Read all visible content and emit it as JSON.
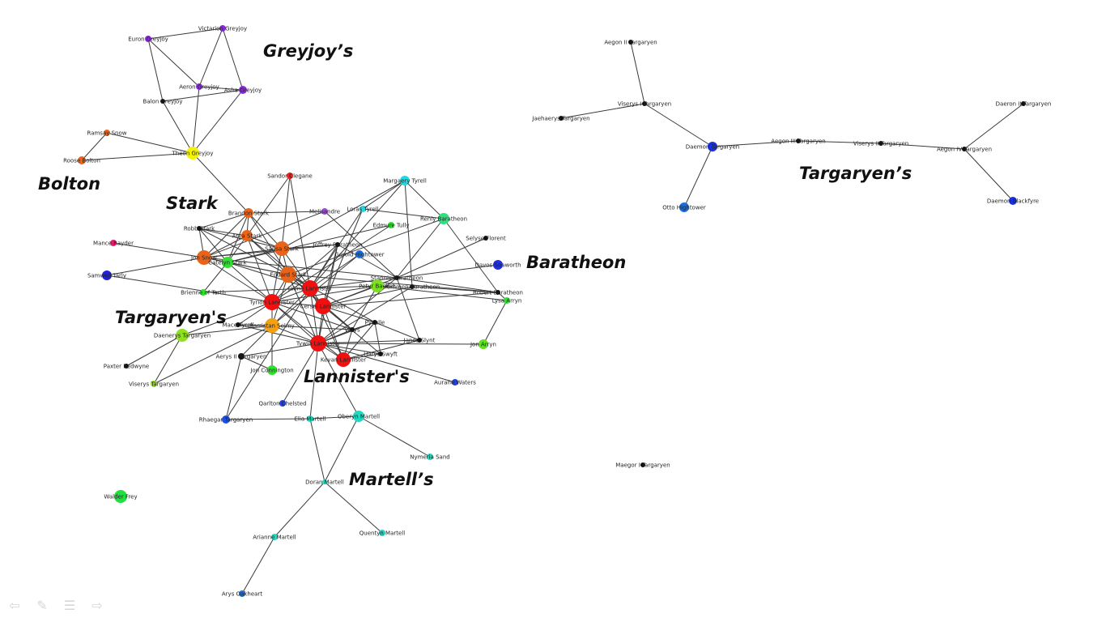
{
  "house_labels": [
    {
      "id": "greyjoys",
      "text": "Greyjoy’s"
    },
    {
      "id": "bolton",
      "text": "Bolton"
    },
    {
      "id": "stark",
      "text": "Stark"
    },
    {
      "id": "baratheon",
      "text": "Baratheon"
    },
    {
      "id": "targaryens-left",
      "text": "Targaryen's"
    },
    {
      "id": "lannisters",
      "text": "Lannister's"
    },
    {
      "id": "martells",
      "text": "Martell’s"
    },
    {
      "id": "targaryens-right",
      "text": "Targaryen’s"
    }
  ],
  "nodes": [
    {
      "id": "euron",
      "label": "Euron Greyjoy",
      "color": "#8a2be2"
    },
    {
      "id": "victarion",
      "label": "Victarion Greyjoy",
      "color": "#8a2be2"
    },
    {
      "id": "aeron",
      "label": "Aeron Greyjoy",
      "color": "#8a2be2"
    },
    {
      "id": "asha",
      "label": "Asha Greyjoy",
      "color": "#8a2be2"
    },
    {
      "id": "balon",
      "label": "Balon Greyjoy",
      "color": "#111111"
    },
    {
      "id": "theon",
      "label": "Theon Greyjoy",
      "color": "#f2f20a"
    },
    {
      "id": "ramsay",
      "label": "Ramsay Snow",
      "color": "#e8641a"
    },
    {
      "id": "roose",
      "label": "Roose Bolton",
      "color": "#e8641a"
    },
    {
      "id": "sandor",
      "label": "Sandor Clegane",
      "color": "#e8201a"
    },
    {
      "id": "margaery",
      "label": "Margaery Tyrell",
      "color": "#20d8e0"
    },
    {
      "id": "brandon",
      "label": "Brandon Stark",
      "color": "#e8641a"
    },
    {
      "id": "melisandre",
      "label": "Melisandre",
      "color": "#a050e0"
    },
    {
      "id": "loras",
      "label": "Loras Tyrell",
      "color": "#20d8e0"
    },
    {
      "id": "edmure",
      "label": "Edmure Tully",
      "color": "#30e030"
    },
    {
      "id": "renly",
      "label": "Renly Baratheon",
      "color": "#30e080"
    },
    {
      "id": "robb",
      "label": "Robb Stark",
      "color": "#111111"
    },
    {
      "id": "arya",
      "label": "Arya Stark",
      "color": "#e8641a"
    },
    {
      "id": "mance",
      "label": "Mance Rayder",
      "color": "#e81a6a"
    },
    {
      "id": "sansa",
      "label": "Sansa Stark",
      "color": "#e8641a"
    },
    {
      "id": "joffrey",
      "label": "Joffrey Baratheon",
      "color": "#111111"
    },
    {
      "id": "selyse",
      "label": "Selyse Florent",
      "color": "#111111"
    },
    {
      "id": "jon_snow",
      "label": "Jon Snow",
      "color": "#e8641a"
    },
    {
      "id": "catelyn",
      "label": "Catelyn Stark",
      "color": "#30e030"
    },
    {
      "id": "gerold",
      "label": "Gerold Hightower",
      "color": "#1a70e0"
    },
    {
      "id": "davos",
      "label": "Davos Seaworth",
      "color": "#2030e0"
    },
    {
      "id": "samwell",
      "label": "Samwell Tarly",
      "color": "#2020e0"
    },
    {
      "id": "eddard",
      "label": "Eddard Stark",
      "color": "#e8641a"
    },
    {
      "id": "stannis",
      "label": "Stannis Baratheon",
      "color": "#111111"
    },
    {
      "id": "jaime",
      "label": "Jaime Lannister",
      "color": "#f01010"
    },
    {
      "id": "petyr",
      "label": "Petyr Baelish",
      "color": "#7ae020"
    },
    {
      "id": "tommen",
      "label": "Tommen Baratheon",
      "color": "#111111"
    },
    {
      "id": "brienne",
      "label": "Brienne of Tarth",
      "color": "#30e030"
    },
    {
      "id": "robert",
      "label": "Robert Baratheon",
      "color": "#111111"
    },
    {
      "id": "lysa",
      "label": "Lysa Arryn",
      "color": "#30e030"
    },
    {
      "id": "tyrion",
      "label": "Tyrion Lannister",
      "color": "#f01010"
    },
    {
      "id": "cersei",
      "label": "Cersei Lannister",
      "color": "#f01010"
    },
    {
      "id": "daenerys",
      "label": "Daenerys Targaryen",
      "color": "#90e020"
    },
    {
      "id": "mace",
      "label": "Mace Tyrell",
      "color": "#111111"
    },
    {
      "id": "barristan",
      "label": "Barristan Selmy",
      "color": "#f5a010"
    },
    {
      "id": "pycelle",
      "label": "Pycelle",
      "color": "#111111"
    },
    {
      "id": "varys",
      "label": "Varys",
      "color": "#111111"
    },
    {
      "id": "tywin",
      "label": "Tywin Lannister",
      "color": "#f01010"
    },
    {
      "id": "janos",
      "label": "Janos Slynt",
      "color": "#111111"
    },
    {
      "id": "jon_arryn",
      "label": "Jon Arryn",
      "color": "#60e020"
    },
    {
      "id": "aerys",
      "label": "Aerys II Targaryen",
      "color": "#111111"
    },
    {
      "id": "harys",
      "label": "Harys Swyft",
      "color": "#111111"
    },
    {
      "id": "kevan",
      "label": "Kevan Lannister",
      "color": "#f01010"
    },
    {
      "id": "paxter",
      "label": "Paxter Redwyne",
      "color": "#111111"
    },
    {
      "id": "jon_connington",
      "label": "Jon Connington",
      "color": "#30e030"
    },
    {
      "id": "viserys_t",
      "label": "Viserys Targaryen",
      "color": "#90e020"
    },
    {
      "id": "aurane",
      "label": "Aurane Waters",
      "color": "#2040e0"
    },
    {
      "id": "qarlton",
      "label": "Qarlton Chelsted",
      "color": "#2040e0"
    },
    {
      "id": "rhaegar",
      "label": "Rhaegar Targaryen",
      "color": "#2050e0"
    },
    {
      "id": "elia",
      "label": "Elia Martell",
      "color": "#20d8c0"
    },
    {
      "id": "oberyn",
      "label": "Oberyn Martell",
      "color": "#20d8c0"
    },
    {
      "id": "nymeria",
      "label": "Nymeria Sand",
      "color": "#20d8c0"
    },
    {
      "id": "doran",
      "label": "Doran Martell",
      "color": "#20d8c0"
    },
    {
      "id": "walder",
      "label": "Walder Frey",
      "color": "#20e040"
    },
    {
      "id": "arianne",
      "label": "Arianne Martell",
      "color": "#20d8c0"
    },
    {
      "id": "quentyn",
      "label": "Quentyn Martell",
      "color": "#20d8c0"
    },
    {
      "id": "arys",
      "label": "Arys Oakheart",
      "color": "#1a70e0"
    },
    {
      "id": "aegon2",
      "label": "Aegon II Targaryen",
      "color": "#111111"
    },
    {
      "id": "viserys1",
      "label": "Viserys I Targaryen",
      "color": "#111111"
    },
    {
      "id": "jaehaerys",
      "label": "Jaehaerys Targaryen",
      "color": "#111111"
    },
    {
      "id": "daemon",
      "label": "Daemon Targaryen",
      "color": "#1a30e0"
    },
    {
      "id": "aegon3",
      "label": "Aegon III Targaryen",
      "color": "#111111"
    },
    {
      "id": "viserys2",
      "label": "Viserys II Targaryen",
      "color": "#111111"
    },
    {
      "id": "aegon4",
      "label": "Aegon IV Targaryen",
      "color": "#111111"
    },
    {
      "id": "daeron2",
      "label": "Daeron II Targaryen",
      "color": "#111111"
    },
    {
      "id": "daemon_b",
      "label": "Daemon Blackfyre",
      "color": "#1a30e0"
    },
    {
      "id": "otto",
      "label": "Otto Hightower",
      "color": "#1a70e0"
    },
    {
      "id": "maegor",
      "label": "Maegor I Targaryen",
      "color": "#111111"
    }
  ],
  "edges": [
    [
      "euron",
      "victarion"
    ],
    [
      "euron",
      "aeron"
    ],
    [
      "euron",
      "balon"
    ],
    [
      "victarion",
      "aeron"
    ],
    [
      "victarion",
      "asha"
    ],
    [
      "aeron",
      "asha"
    ],
    [
      "aeron",
      "theon"
    ],
    [
      "balon",
      "asha"
    ],
    [
      "balon",
      "theon"
    ],
    [
      "asha",
      "theon"
    ],
    [
      "ramsay",
      "theon"
    ],
    [
      "roose",
      "theon"
    ],
    [
      "ramsay",
      "roose"
    ],
    [
      "theon",
      "brandon"
    ],
    [
      "brandon",
      "robb"
    ],
    [
      "brandon",
      "arya"
    ],
    [
      "brandon",
      "jon_snow"
    ],
    [
      "brandon",
      "sansa"
    ],
    [
      "brandon",
      "eddard"
    ],
    [
      "brandon",
      "catelyn"
    ],
    [
      "sandor",
      "arya"
    ],
    [
      "sandor",
      "sansa"
    ],
    [
      "sandor",
      "jaime"
    ],
    [
      "margaery",
      "loras"
    ],
    [
      "margaery",
      "renly"
    ],
    [
      "margaery",
      "sansa"
    ],
    [
      "margaery",
      "jaime"
    ],
    [
      "margaery",
      "tommen"
    ],
    [
      "loras",
      "renly"
    ],
    [
      "loras",
      "jaime"
    ],
    [
      "loras",
      "cersei"
    ],
    [
      "melisandre",
      "jon_snow"
    ],
    [
      "melisandre",
      "stannis"
    ],
    [
      "melisandre",
      "brandon"
    ],
    [
      "edmure",
      "catelyn"
    ],
    [
      "edmure",
      "tyrion"
    ],
    [
      "renly",
      "stannis"
    ],
    [
      "renly",
      "robert"
    ],
    [
      "renly",
      "eddard"
    ],
    [
      "robb",
      "arya"
    ],
    [
      "robb",
      "catelyn"
    ],
    [
      "robb",
      "jon_snow"
    ],
    [
      "robb",
      "eddard"
    ],
    [
      "robb",
      "sansa"
    ],
    [
      "arya",
      "sansa"
    ],
    [
      "arya",
      "catelyn"
    ],
    [
      "arya",
      "eddard"
    ],
    [
      "arya",
      "jon_snow"
    ],
    [
      "arya",
      "jaime"
    ],
    [
      "arya",
      "tyrion"
    ],
    [
      "mance",
      "jon_snow"
    ],
    [
      "sansa",
      "joffrey"
    ],
    [
      "sansa",
      "catelyn"
    ],
    [
      "sansa",
      "eddard"
    ],
    [
      "sansa",
      "tyrion"
    ],
    [
      "sansa",
      "cersei"
    ],
    [
      "sansa",
      "jon_snow"
    ],
    [
      "joffrey",
      "jon_snow"
    ],
    [
      "joffrey",
      "cersei"
    ],
    [
      "joffrey",
      "tyrion"
    ],
    [
      "joffrey",
      "jaime"
    ],
    [
      "joffrey",
      "stannis"
    ],
    [
      "joffrey",
      "tywin"
    ],
    [
      "selyse",
      "stannis"
    ],
    [
      "jon_snow",
      "catelyn"
    ],
    [
      "jon_snow",
      "samwell"
    ],
    [
      "jon_snow",
      "eddard"
    ],
    [
      "jon_snow",
      "tyrion"
    ],
    [
      "jon_snow",
      "stannis"
    ],
    [
      "catelyn",
      "eddard"
    ],
    [
      "catelyn",
      "jaime"
    ],
    [
      "catelyn",
      "tyrion"
    ],
    [
      "catelyn",
      "brienne"
    ],
    [
      "gerold",
      "jaime"
    ],
    [
      "gerold",
      "barristan"
    ],
    [
      "davos",
      "stannis"
    ],
    [
      "samwell",
      "tyrion"
    ],
    [
      "eddard",
      "robert"
    ],
    [
      "eddard",
      "cersei"
    ],
    [
      "eddard",
      "jaime"
    ],
    [
      "eddard",
      "tyrion"
    ],
    [
      "eddard",
      "barristan"
    ],
    [
      "eddard",
      "varys"
    ],
    [
      "eddard",
      "pycelle"
    ],
    [
      "eddard",
      "tywin"
    ],
    [
      "stannis",
      "robert"
    ],
    [
      "stannis",
      "tywin"
    ],
    [
      "stannis",
      "janos"
    ],
    [
      "stannis",
      "cersei"
    ],
    [
      "stannis",
      "jaime"
    ],
    [
      "jaime",
      "cersei"
    ],
    [
      "jaime",
      "tyrion"
    ],
    [
      "jaime",
      "tywin"
    ],
    [
      "jaime",
      "brienne"
    ],
    [
      "jaime",
      "barristan"
    ],
    [
      "jaime",
      "petyr"
    ],
    [
      "jaime",
      "kevan"
    ],
    [
      "petyr",
      "tyrion"
    ],
    [
      "petyr",
      "cersei"
    ],
    [
      "petyr",
      "varys"
    ],
    [
      "petyr",
      "lysa"
    ],
    [
      "tommen",
      "cersei"
    ],
    [
      "tommen",
      "tywin"
    ],
    [
      "tommen",
      "robert"
    ],
    [
      "robert",
      "lysa"
    ],
    [
      "robert",
      "cersei"
    ],
    [
      "lysa",
      "jon_arryn"
    ],
    [
      "tyrion",
      "cersei"
    ],
    [
      "tyrion",
      "tywin"
    ],
    [
      "tyrion",
      "varys"
    ],
    [
      "tyrion",
      "kevan"
    ],
    [
      "tyrion",
      "barristan"
    ],
    [
      "tyrion",
      "mace"
    ],
    [
      "tyrion",
      "daenerys"
    ],
    [
      "cersei",
      "tywin"
    ],
    [
      "cersei",
      "kevan"
    ],
    [
      "cersei",
      "pycelle"
    ],
    [
      "cersei",
      "varys"
    ],
    [
      "cersei",
      "harys"
    ],
    [
      "daenerys",
      "barristan"
    ],
    [
      "daenerys",
      "viserys_t"
    ],
    [
      "daenerys",
      "paxter"
    ],
    [
      "mace",
      "tywin"
    ],
    [
      "mace",
      "barristan"
    ],
    [
      "barristan",
      "tywin"
    ],
    [
      "barristan",
      "jon_connington"
    ],
    [
      "barristan",
      "aerys"
    ],
    [
      "barristan",
      "varys"
    ],
    [
      "barristan",
      "viserys_t"
    ],
    [
      "pycelle",
      "tywin"
    ],
    [
      "pycelle",
      "kevan"
    ],
    [
      "pycelle",
      "janos"
    ],
    [
      "pycelle",
      "harys"
    ],
    [
      "pycelle",
      "varys"
    ],
    [
      "varys",
      "tywin"
    ],
    [
      "varys",
      "kevan"
    ],
    [
      "tywin",
      "kevan"
    ],
    [
      "tywin",
      "janos"
    ],
    [
      "tywin",
      "harys"
    ],
    [
      "tywin",
      "aerys"
    ],
    [
      "tywin",
      "jon_arryn"
    ],
    [
      "tywin",
      "qarlton"
    ],
    [
      "tywin",
      "elia"
    ],
    [
      "tywin",
      "aurane"
    ],
    [
      "tywin",
      "oberyn"
    ],
    [
      "kevan",
      "harys"
    ],
    [
      "kevan",
      "janos"
    ],
    [
      "aerys",
      "rhaegar"
    ],
    [
      "aerys",
      "jon_connington"
    ],
    [
      "rhaegar",
      "elia"
    ],
    [
      "rhaegar",
      "jaime"
    ],
    [
      "elia",
      "oberyn"
    ],
    [
      "elia",
      "doran"
    ],
    [
      "oberyn",
      "doran"
    ],
    [
      "oberyn",
      "nymeria"
    ],
    [
      "doran",
      "arianne"
    ],
    [
      "doran",
      "quentyn"
    ],
    [
      "arianne",
      "arys"
    ],
    [
      "aegon2",
      "viserys1"
    ],
    [
      "viserys1",
      "jaehaerys"
    ],
    [
      "viserys1",
      "daemon"
    ],
    [
      "daemon",
      "otto"
    ],
    [
      "daemon",
      "aegon3"
    ],
    [
      "aegon3",
      "viserys2"
    ],
    [
      "viserys2",
      "aegon4"
    ],
    [
      "aegon4",
      "daeron2"
    ],
    [
      "aegon4",
      "daemon_b"
    ]
  ]
}
